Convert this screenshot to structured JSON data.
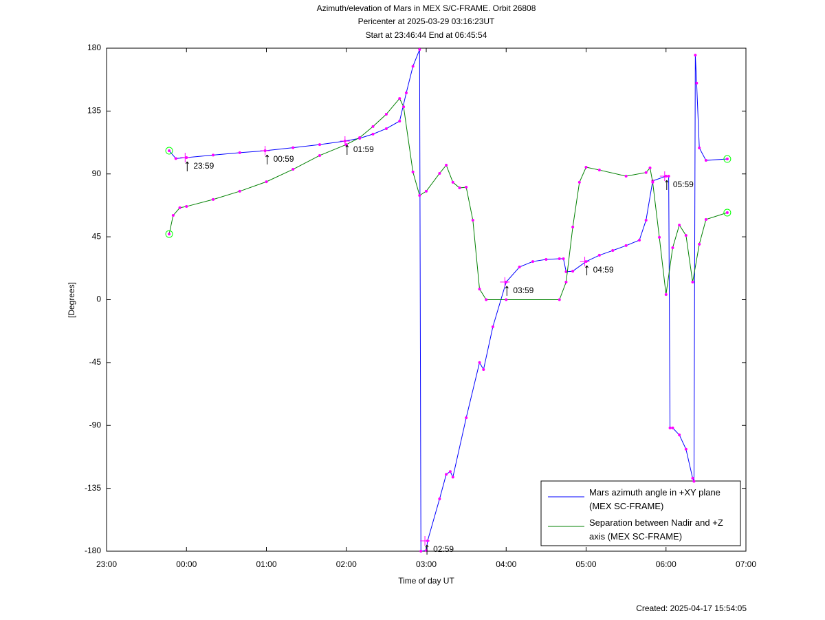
{
  "chart_data": {
    "type": "line",
    "title": "Azimuth/elevation of Mars in MEX S/C-FRAME.  Orbit 26808",
    "subtitle": "Pericenter at 2025-03-29 03:16:23UT",
    "subtitle2": "Start at 23:46:44 End at 06:45:54",
    "xlabel": "Time of day UT",
    "ylabel": "[Degrees]",
    "footer": "Created: 2025-04-17 15:54:05",
    "xlim": [
      "23:00",
      "07:00"
    ],
    "xticks": [
      "23:00",
      "00:00",
      "01:00",
      "02:00",
      "03:00",
      "04:00",
      "05:00",
      "06:00",
      "07:00"
    ],
    "ylim": [
      -180,
      180
    ],
    "yticks": [
      180,
      135,
      90,
      45,
      0,
      -45,
      -90,
      -135,
      -180
    ],
    "series": [
      {
        "name": "Mars azimuth angle in +XY plane (MEX SC-FRAME)",
        "color": "#0000ff",
        "x": [
          "23:47",
          "23:52",
          "00:00",
          "00:20",
          "00:40",
          "00:59",
          "01:20",
          "01:40",
          "01:59",
          "02:10",
          "02:20",
          "02:30",
          "02:40",
          "02:45",
          "02:50",
          "02:55",
          "02:56",
          "03:00",
          "03:01",
          "03:10",
          "03:15",
          "03:18",
          "03:20",
          "03:30",
          "03:40",
          "03:43",
          "03:50",
          "04:00",
          "04:10",
          "04:20",
          "04:30",
          "04:40",
          "04:43",
          "04:45",
          "04:50",
          "05:00",
          "05:10",
          "05:20",
          "05:30",
          "05:40",
          "05:45",
          "05:50",
          "06:00",
          "06:02",
          "06:03",
          "06:05",
          "06:10",
          "06:15",
          "06:20",
          "06:21",
          "06:22",
          "06:23",
          "06:25",
          "06:30",
          "06:46"
        ],
        "values": [
          106.6,
          101,
          101.7,
          103.5,
          105.2,
          106.6,
          108.8,
          111,
          113.5,
          115.5,
          118.5,
          122.4,
          127.8,
          148,
          167,
          179,
          -180,
          -179.5,
          -172.6,
          -142.6,
          -125,
          -123,
          -127,
          -84.5,
          -45,
          -50,
          -19.4,
          12.6,
          23.4,
          27.3,
          28.8,
          29.3,
          29.3,
          20,
          20.4,
          27.3,
          31.8,
          35.2,
          38.7,
          42.6,
          56.9,
          85,
          88.4,
          88.4,
          -91.8,
          -91.8,
          -96.8,
          -107,
          -127.8,
          -130,
          175,
          155,
          108.6,
          99.7,
          100.7
        ]
      },
      {
        "name": "Separation between Nadir and +Z axis (MEX SC-FRAME)",
        "color": "#008000",
        "x": [
          "23:47",
          "23:50",
          "23:55",
          "00:00",
          "00:20",
          "00:40",
          "01:00",
          "01:20",
          "01:40",
          "02:00",
          "02:10",
          "02:20",
          "02:30",
          "02:40",
          "02:43",
          "02:50",
          "02:55",
          "03:00",
          "03:10",
          "03:15",
          "03:20",
          "03:25",
          "03:30",
          "03:35",
          "03:40",
          "03:45",
          "04:00",
          "04:40",
          "04:45",
          "04:50",
          "04:55",
          "05:00",
          "05:10",
          "05:30",
          "05:45",
          "05:48",
          "05:50",
          "05:55",
          "06:00",
          "06:05",
          "06:10",
          "06:15",
          "06:20",
          "06:25",
          "06:30",
          "06:46"
        ],
        "values": [
          47,
          60.3,
          65.8,
          66.7,
          71.7,
          77.6,
          84.4,
          93.3,
          103.2,
          111,
          116,
          123.9,
          132.7,
          144,
          138,
          91.4,
          74.6,
          77.6,
          90.4,
          96.3,
          84,
          80,
          80.5,
          56.9,
          7.6,
          0,
          0,
          0,
          12.6,
          52,
          84,
          94.8,
          92.8,
          88.4,
          91,
          94.3,
          84,
          44.6,
          3.7,
          37.2,
          53.4,
          46,
          12.6,
          39.7,
          57.4,
          62.3
        ]
      }
    ],
    "annotations": [
      {
        "label": "23:59",
        "y": 101.7
      },
      {
        "label": "00:59",
        "y": 106.6
      },
      {
        "label": "01:59",
        "y": 113.5
      },
      {
        "label": "02:59",
        "y": -172.6
      },
      {
        "label": "03:59",
        "y": 12.6
      },
      {
        "label": "04:59",
        "y": 27.3
      },
      {
        "label": "05:59",
        "y": 88.4
      }
    ],
    "marker_color": "#ff00ff"
  }
}
